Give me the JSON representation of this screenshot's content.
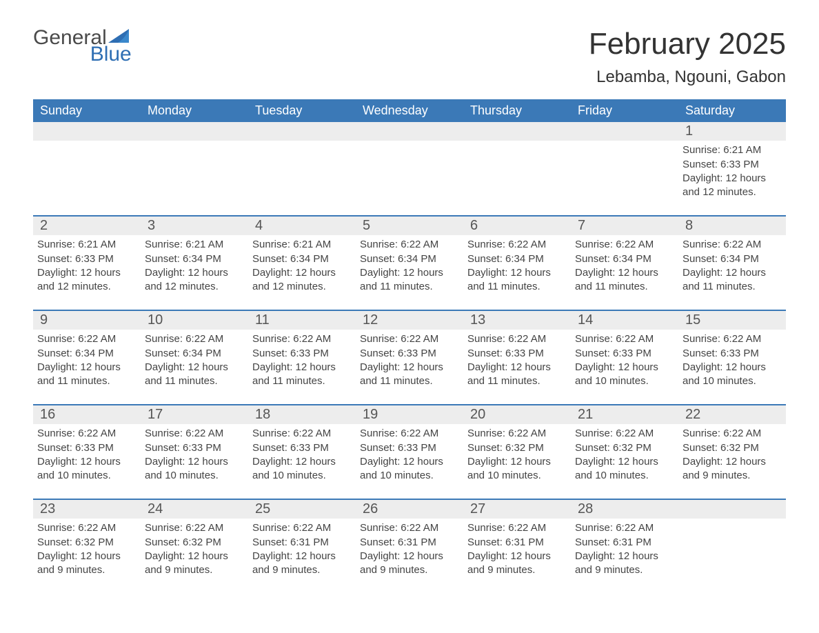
{
  "brand": {
    "word1": "General",
    "word2": "Blue",
    "color": "#2e6eb3"
  },
  "title": "February 2025",
  "location": "Lebamba, Ngouni, Gabon",
  "header_bg": "#3b79b7",
  "daynum_bg": "#ededed",
  "row_divider": "#3b79b7",
  "day_names": [
    "Sunday",
    "Monday",
    "Tuesday",
    "Wednesday",
    "Thursday",
    "Friday",
    "Saturday"
  ],
  "weeks": [
    [
      null,
      null,
      null,
      null,
      null,
      null,
      {
        "n": "1",
        "sunrise": "Sunrise: 6:21 AM",
        "sunset": "Sunset: 6:33 PM",
        "day1": "Daylight: 12 hours",
        "day2": "and 12 minutes."
      }
    ],
    [
      {
        "n": "2",
        "sunrise": "Sunrise: 6:21 AM",
        "sunset": "Sunset: 6:33 PM",
        "day1": "Daylight: 12 hours",
        "day2": "and 12 minutes."
      },
      {
        "n": "3",
        "sunrise": "Sunrise: 6:21 AM",
        "sunset": "Sunset: 6:34 PM",
        "day1": "Daylight: 12 hours",
        "day2": "and 12 minutes."
      },
      {
        "n": "4",
        "sunrise": "Sunrise: 6:21 AM",
        "sunset": "Sunset: 6:34 PM",
        "day1": "Daylight: 12 hours",
        "day2": "and 12 minutes."
      },
      {
        "n": "5",
        "sunrise": "Sunrise: 6:22 AM",
        "sunset": "Sunset: 6:34 PM",
        "day1": "Daylight: 12 hours",
        "day2": "and 11 minutes."
      },
      {
        "n": "6",
        "sunrise": "Sunrise: 6:22 AM",
        "sunset": "Sunset: 6:34 PM",
        "day1": "Daylight: 12 hours",
        "day2": "and 11 minutes."
      },
      {
        "n": "7",
        "sunrise": "Sunrise: 6:22 AM",
        "sunset": "Sunset: 6:34 PM",
        "day1": "Daylight: 12 hours",
        "day2": "and 11 minutes."
      },
      {
        "n": "8",
        "sunrise": "Sunrise: 6:22 AM",
        "sunset": "Sunset: 6:34 PM",
        "day1": "Daylight: 12 hours",
        "day2": "and 11 minutes."
      }
    ],
    [
      {
        "n": "9",
        "sunrise": "Sunrise: 6:22 AM",
        "sunset": "Sunset: 6:34 PM",
        "day1": "Daylight: 12 hours",
        "day2": "and 11 minutes."
      },
      {
        "n": "10",
        "sunrise": "Sunrise: 6:22 AM",
        "sunset": "Sunset: 6:34 PM",
        "day1": "Daylight: 12 hours",
        "day2": "and 11 minutes."
      },
      {
        "n": "11",
        "sunrise": "Sunrise: 6:22 AM",
        "sunset": "Sunset: 6:33 PM",
        "day1": "Daylight: 12 hours",
        "day2": "and 11 minutes."
      },
      {
        "n": "12",
        "sunrise": "Sunrise: 6:22 AM",
        "sunset": "Sunset: 6:33 PM",
        "day1": "Daylight: 12 hours",
        "day2": "and 11 minutes."
      },
      {
        "n": "13",
        "sunrise": "Sunrise: 6:22 AM",
        "sunset": "Sunset: 6:33 PM",
        "day1": "Daylight: 12 hours",
        "day2": "and 11 minutes."
      },
      {
        "n": "14",
        "sunrise": "Sunrise: 6:22 AM",
        "sunset": "Sunset: 6:33 PM",
        "day1": "Daylight: 12 hours",
        "day2": "and 10 minutes."
      },
      {
        "n": "15",
        "sunrise": "Sunrise: 6:22 AM",
        "sunset": "Sunset: 6:33 PM",
        "day1": "Daylight: 12 hours",
        "day2": "and 10 minutes."
      }
    ],
    [
      {
        "n": "16",
        "sunrise": "Sunrise: 6:22 AM",
        "sunset": "Sunset: 6:33 PM",
        "day1": "Daylight: 12 hours",
        "day2": "and 10 minutes."
      },
      {
        "n": "17",
        "sunrise": "Sunrise: 6:22 AM",
        "sunset": "Sunset: 6:33 PM",
        "day1": "Daylight: 12 hours",
        "day2": "and 10 minutes."
      },
      {
        "n": "18",
        "sunrise": "Sunrise: 6:22 AM",
        "sunset": "Sunset: 6:33 PM",
        "day1": "Daylight: 12 hours",
        "day2": "and 10 minutes."
      },
      {
        "n": "19",
        "sunrise": "Sunrise: 6:22 AM",
        "sunset": "Sunset: 6:33 PM",
        "day1": "Daylight: 12 hours",
        "day2": "and 10 minutes."
      },
      {
        "n": "20",
        "sunrise": "Sunrise: 6:22 AM",
        "sunset": "Sunset: 6:32 PM",
        "day1": "Daylight: 12 hours",
        "day2": "and 10 minutes."
      },
      {
        "n": "21",
        "sunrise": "Sunrise: 6:22 AM",
        "sunset": "Sunset: 6:32 PM",
        "day1": "Daylight: 12 hours",
        "day2": "and 10 minutes."
      },
      {
        "n": "22",
        "sunrise": "Sunrise: 6:22 AM",
        "sunset": "Sunset: 6:32 PM",
        "day1": "Daylight: 12 hours",
        "day2": "and 9 minutes."
      }
    ],
    [
      {
        "n": "23",
        "sunrise": "Sunrise: 6:22 AM",
        "sunset": "Sunset: 6:32 PM",
        "day1": "Daylight: 12 hours",
        "day2": "and 9 minutes."
      },
      {
        "n": "24",
        "sunrise": "Sunrise: 6:22 AM",
        "sunset": "Sunset: 6:32 PM",
        "day1": "Daylight: 12 hours",
        "day2": "and 9 minutes."
      },
      {
        "n": "25",
        "sunrise": "Sunrise: 6:22 AM",
        "sunset": "Sunset: 6:31 PM",
        "day1": "Daylight: 12 hours",
        "day2": "and 9 minutes."
      },
      {
        "n": "26",
        "sunrise": "Sunrise: 6:22 AM",
        "sunset": "Sunset: 6:31 PM",
        "day1": "Daylight: 12 hours",
        "day2": "and 9 minutes."
      },
      {
        "n": "27",
        "sunrise": "Sunrise: 6:22 AM",
        "sunset": "Sunset: 6:31 PM",
        "day1": "Daylight: 12 hours",
        "day2": "and 9 minutes."
      },
      {
        "n": "28",
        "sunrise": "Sunrise: 6:22 AM",
        "sunset": "Sunset: 6:31 PM",
        "day1": "Daylight: 12 hours",
        "day2": "and 9 minutes."
      },
      null
    ]
  ]
}
